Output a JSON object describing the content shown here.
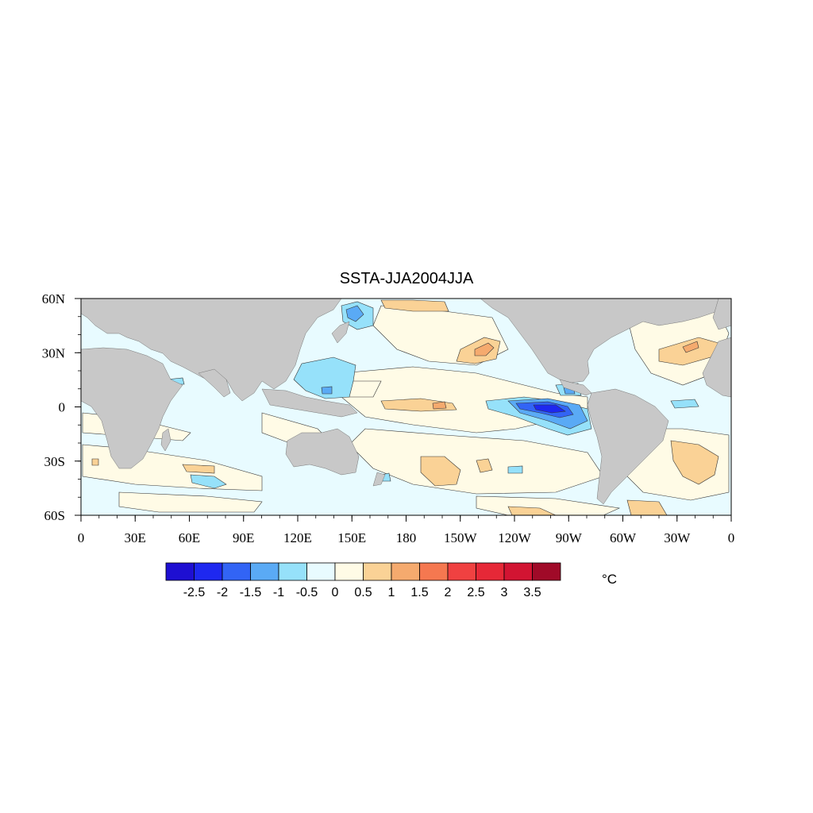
{
  "title": "SSTA-JJA2004JJA",
  "units": "°C",
  "map": {
    "lon_ticks": [
      "0",
      "30E",
      "60E",
      "90E",
      "120E",
      "150E",
      "180",
      "150W",
      "120W",
      "90W",
      "60W",
      "30W",
      "0"
    ],
    "lat_ticks": [
      "60N",
      "30N",
      "0",
      "30S",
      "60S"
    ],
    "extent": {
      "lon": [
        0,
        360
      ],
      "lat": [
        -60,
        60
      ]
    },
    "land_color": "#c8c8c8",
    "ocean_color": "#e8fbff"
  },
  "colorbar": {
    "labels": [
      "-2.5",
      "-2",
      "-1.5",
      "-1",
      "-0.5",
      "0",
      "0.5",
      "1",
      "1.5",
      "2",
      "2.5",
      "3",
      "3.5"
    ],
    "colors": [
      "#1e0fd2",
      "#1e28f0",
      "#3264f5",
      "#5aaaf5",
      "#96e1fa",
      "#e8fbff",
      "#fffbe6",
      "#fad296",
      "#f5aa6e",
      "#f57850",
      "#f04141",
      "#e62837",
      "#d21432",
      "#a00a28"
    ]
  }
}
